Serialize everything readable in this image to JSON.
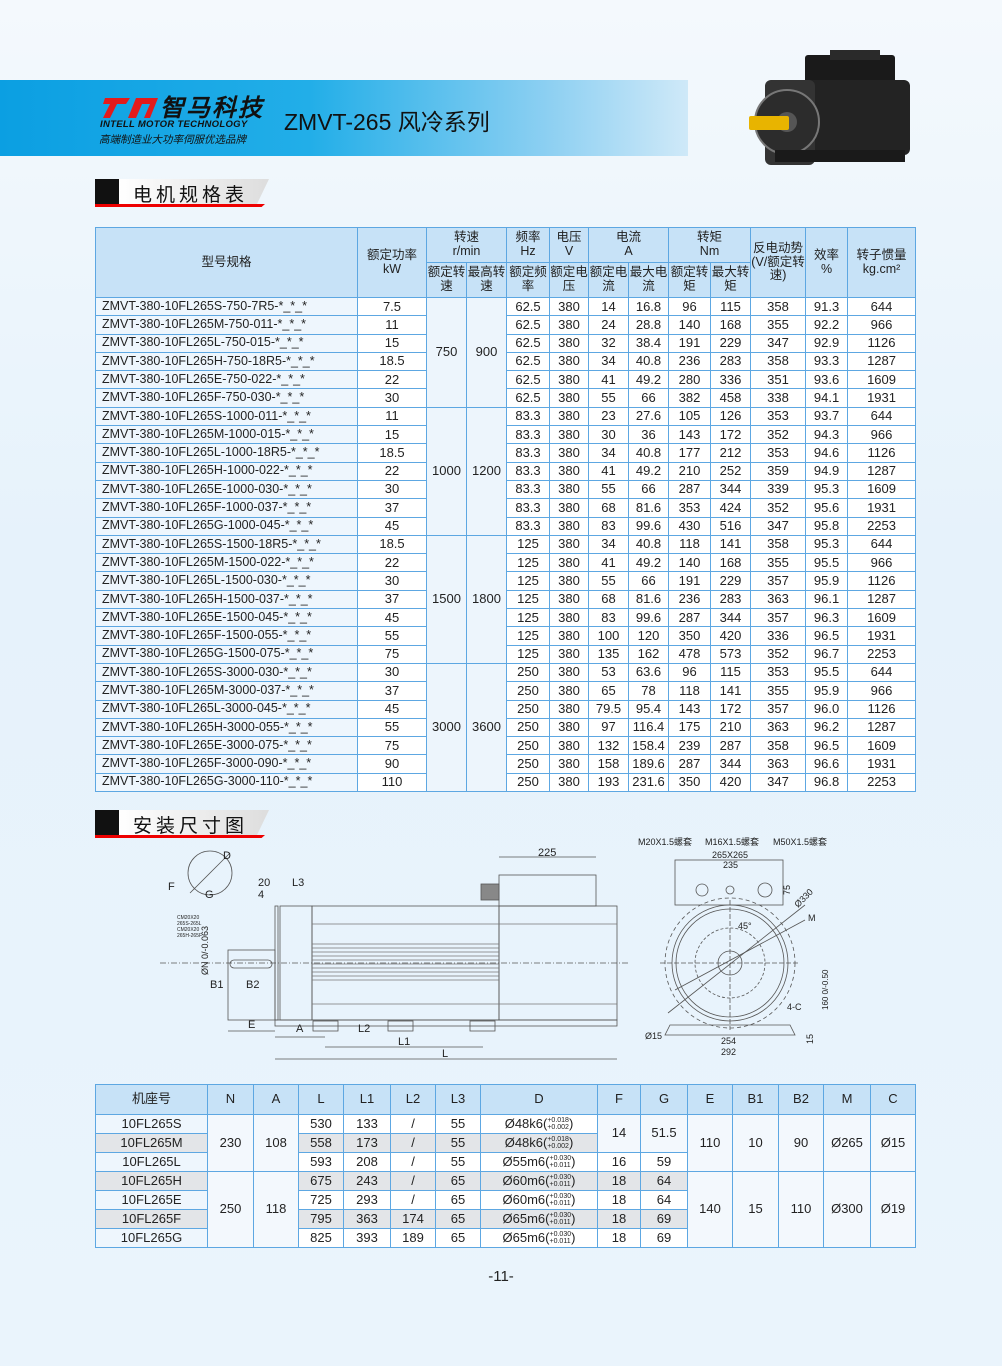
{
  "header": {
    "brand_cn": "智马科技",
    "brand_en": "INTELL MOTOR TECHNOLOGY",
    "slogan": "高端制造业大功率伺服优选品牌",
    "series_title": "ZMVT-265 风冷系列",
    "brand_color": "#e31b1b",
    "band_color": "#0b9fe2"
  },
  "sections": {
    "spec_title": "电机规格表",
    "dim_title": "安装尺寸图"
  },
  "spec_table": {
    "headers": {
      "model": "型号规格",
      "power": "额定功率",
      "power_unit": "kW",
      "speed": "转速",
      "speed_unit": "r/min",
      "rated_speed": "额定转速",
      "max_speed": "最高转速",
      "freq": "频率",
      "freq_unit": "Hz",
      "rated_freq": "额定频率",
      "volt": "电压",
      "volt_unit": "V",
      "rated_volt": "额定电压",
      "current": "电流",
      "current_unit": "A",
      "rated_current": "额定电流",
      "max_current": "最大电流",
      "torque": "转矩",
      "torque_unit": "Nm",
      "rated_torque": "额定转矩",
      "max_torque": "最大转矩",
      "bemf": "反电动势(V/额定转速)",
      "eff": "效率",
      "eff_unit": "%",
      "inertia": "转子惯量",
      "inertia_unit": "kg.cm²"
    },
    "groups": [
      {
        "rated_speed": "750",
        "max_speed": "900",
        "rows": [
          [
            "ZMVT-380-10FL265S-750-7R5-*_*_*",
            "7.5",
            "62.5",
            "380",
            "14",
            "16.8",
            "96",
            "115",
            "358",
            "91.3",
            "644"
          ],
          [
            "ZMVT-380-10FL265M-750-011-*_*_*",
            "11",
            "62.5",
            "380",
            "24",
            "28.8",
            "140",
            "168",
            "355",
            "92.2",
            "966"
          ],
          [
            "ZMVT-380-10FL265L-750-015-*_*_*",
            "15",
            "62.5",
            "380",
            "32",
            "38.4",
            "191",
            "229",
            "347",
            "92.9",
            "1126"
          ],
          [
            "ZMVT-380-10FL265H-750-18R5-*_*_*",
            "18.5",
            "62.5",
            "380",
            "34",
            "40.8",
            "236",
            "283",
            "358",
            "93.3",
            "1287"
          ],
          [
            "ZMVT-380-10FL265E-750-022-*_*_*",
            "22",
            "62.5",
            "380",
            "41",
            "49.2",
            "280",
            "336",
            "351",
            "93.6",
            "1609"
          ],
          [
            "ZMVT-380-10FL265F-750-030-*_*_*",
            "30",
            "62.5",
            "380",
            "55",
            "66",
            "382",
            "458",
            "338",
            "94.1",
            "1931"
          ]
        ]
      },
      {
        "rated_speed": "1000",
        "max_speed": "1200",
        "rows": [
          [
            "ZMVT-380-10FL265S-1000-011-*_*_*",
            "11",
            "83.3",
            "380",
            "23",
            "27.6",
            "105",
            "126",
            "353",
            "93.7",
            "644"
          ],
          [
            "ZMVT-380-10FL265M-1000-015-*_*_*",
            "15",
            "83.3",
            "380",
            "30",
            "36",
            "143",
            "172",
            "352",
            "94.3",
            "966"
          ],
          [
            "ZMVT-380-10FL265L-1000-18R5-*_*_*",
            "18.5",
            "83.3",
            "380",
            "34",
            "40.8",
            "177",
            "212",
            "353",
            "94.6",
            "1126"
          ],
          [
            "ZMVT-380-10FL265H-1000-022-*_*_*",
            "22",
            "83.3",
            "380",
            "41",
            "49.2",
            "210",
            "252",
            "359",
            "94.9",
            "1287"
          ],
          [
            "ZMVT-380-10FL265E-1000-030-*_*_*",
            "30",
            "83.3",
            "380",
            "55",
            "66",
            "287",
            "344",
            "339",
            "95.3",
            "1609"
          ],
          [
            "ZMVT-380-10FL265F-1000-037-*_*_*",
            "37",
            "83.3",
            "380",
            "68",
            "81.6",
            "353",
            "424",
            "352",
            "95.6",
            "1931"
          ],
          [
            "ZMVT-380-10FL265G-1000-045-*_*_*",
            "45",
            "83.3",
            "380",
            "83",
            "99.6",
            "430",
            "516",
            "347",
            "95.8",
            "2253"
          ]
        ]
      },
      {
        "rated_speed": "1500",
        "max_speed": "1800",
        "rows": [
          [
            "ZMVT-380-10FL265S-1500-18R5-*_*_*",
            "18.5",
            "125",
            "380",
            "34",
            "40.8",
            "118",
            "141",
            "358",
            "95.3",
            "644"
          ],
          [
            "ZMVT-380-10FL265M-1500-022-*_*_*",
            "22",
            "125",
            "380",
            "41",
            "49.2",
            "140",
            "168",
            "355",
            "95.5",
            "966"
          ],
          [
            "ZMVT-380-10FL265L-1500-030-*_*_*",
            "30",
            "125",
            "380",
            "55",
            "66",
            "191",
            "229",
            "357",
            "95.9",
            "1126"
          ],
          [
            "ZMVT-380-10FL265H-1500-037-*_*_*",
            "37",
            "125",
            "380",
            "68",
            "81.6",
            "236",
            "283",
            "363",
            "96.1",
            "1287"
          ],
          [
            "ZMVT-380-10FL265E-1500-045-*_*_*",
            "45",
            "125",
            "380",
            "83",
            "99.6",
            "287",
            "344",
            "357",
            "96.3",
            "1609"
          ],
          [
            "ZMVT-380-10FL265F-1500-055-*_*_*",
            "55",
            "125",
            "380",
            "100",
            "120",
            "350",
            "420",
            "336",
            "96.5",
            "1931"
          ],
          [
            "ZMVT-380-10FL265G-1500-075-*_*_*",
            "75",
            "125",
            "380",
            "135",
            "162",
            "478",
            "573",
            "352",
            "96.7",
            "2253"
          ]
        ]
      },
      {
        "rated_speed": "3000",
        "max_speed": "3600",
        "rows": [
          [
            "ZMVT-380-10FL265S-3000-030-*_*_*",
            "30",
            "250",
            "380",
            "53",
            "63.6",
            "96",
            "115",
            "353",
            "95.5",
            "644"
          ],
          [
            "ZMVT-380-10FL265M-3000-037-*_*_*",
            "37",
            "250",
            "380",
            "65",
            "78",
            "118",
            "141",
            "355",
            "95.9",
            "966"
          ],
          [
            "ZMVT-380-10FL265L-3000-045-*_*_*",
            "45",
            "250",
            "380",
            "79.5",
            "95.4",
            "143",
            "172",
            "357",
            "96.0",
            "1126"
          ],
          [
            "ZMVT-380-10FL265H-3000-055-*_*_*",
            "55",
            "250",
            "380",
            "97",
            "116.4",
            "175",
            "210",
            "363",
            "96.2",
            "1287"
          ],
          [
            "ZMVT-380-10FL265E-3000-075-*_*_*",
            "75",
            "250",
            "380",
            "132",
            "158.4",
            "239",
            "287",
            "358",
            "96.5",
            "1609"
          ],
          [
            "ZMVT-380-10FL265F-3000-090-*_*_*",
            "90",
            "250",
            "380",
            "158",
            "189.6",
            "287",
            "344",
            "363",
            "96.6",
            "1931"
          ],
          [
            "ZMVT-380-10FL265G-3000-110-*_*_*",
            "110",
            "250",
            "380",
            "193",
            "231.6",
            "350",
            "420",
            "347",
            "96.8",
            "2253"
          ]
        ]
      }
    ]
  },
  "drawing": {
    "labels": {
      "d": "D",
      "f": "F",
      "g": "G",
      "l20": "20",
      "l4": "4",
      "l3": "L3",
      "cm1": "CM20X20",
      "cm1b": "265S-265L",
      "cm2": "CM20X20",
      "cm2b": "265H-265F",
      "n": "ØN 0/-0.063",
      "b1": "B1",
      "b2": "B2",
      "e": "E",
      "a": "A",
      "l2": "L2",
      "l1": "L1",
      "l": "L",
      "w225": "225",
      "m20": "M20X1.5螺套",
      "m16": "M16X1.5螺套",
      "m50": "M50X1.5螺套",
      "sq": "265X265",
      "w235": "235",
      "h75": "75",
      "d330": "Ø330",
      "m": "M",
      "deg": "45°",
      "c4": "4-C",
      "h160": "160 0/-0.50",
      "d15": "Ø15",
      "w254": "254",
      "w292": "292",
      "h15": "15"
    }
  },
  "dim_table": {
    "headers": [
      "机座号",
      "N",
      "A",
      "L",
      "L1",
      "L2",
      "L3",
      "D",
      "F",
      "G",
      "E",
      "B1",
      "B2",
      "M",
      "C"
    ],
    "rows": [
      {
        "frame": "10FL265S",
        "L": "530",
        "L1": "133",
        "L2": "/",
        "L3": "55",
        "D": "Ø48k6(",
        "tol_up": "+0.018",
        "tol_lo": "+0.002"
      },
      {
        "frame": "10FL265M",
        "L": "558",
        "L1": "173",
        "L2": "/",
        "L3": "55",
        "D": "Ø48k6(",
        "tol_up": "+0.018",
        "tol_lo": "+0.002"
      },
      {
        "frame": "10FL265L",
        "L": "593",
        "L1": "208",
        "L2": "/",
        "L3": "55",
        "D": "Ø55m6(",
        "tol_up": "+0.030",
        "tol_lo": "+0.011",
        "F": "16",
        "G": "59"
      },
      {
        "frame": "10FL265H",
        "L": "675",
        "L1": "243",
        "L2": "/",
        "L3": "65",
        "D": "Ø60m6(",
        "tol_up": "+0.030",
        "tol_lo": "+0.011",
        "F": "18",
        "G": "64"
      },
      {
        "frame": "10FL265E",
        "L": "725",
        "L1": "293",
        "L2": "/",
        "L3": "65",
        "D": "Ø60m6(",
        "tol_up": "+0.030",
        "tol_lo": "+0.011",
        "F": "18",
        "G": "64"
      },
      {
        "frame": "10FL265F",
        "L": "795",
        "L1": "363",
        "L2": "174",
        "L3": "65",
        "D": "Ø65m6(",
        "tol_up": "+0.030",
        "tol_lo": "+0.011",
        "F": "18",
        "G": "69"
      },
      {
        "frame": "10FL265G",
        "L": "825",
        "L1": "393",
        "L2": "189",
        "L3": "65",
        "D": "Ø65m6(",
        "tol_up": "+0.030",
        "tol_lo": "+0.011",
        "F": "18",
        "G": "69"
      }
    ],
    "merged_FG": {
      "F": "14",
      "G": "51.5"
    },
    "groups": [
      {
        "N": "230",
        "A": "108",
        "E": "110",
        "B1": "10",
        "B2": "90",
        "M": "Ø265",
        "C": "Ø15"
      },
      {
        "N": "250",
        "A": "118",
        "E": "140",
        "B1": "15",
        "B2": "110",
        "M": "Ø300",
        "C": "Ø19"
      }
    ],
    "close_paren": ")"
  },
  "footer": {
    "page_number": "-11-"
  }
}
